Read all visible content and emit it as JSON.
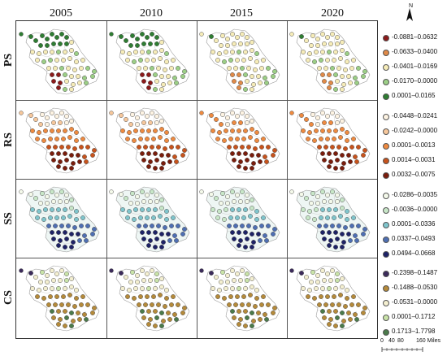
{
  "columns": [
    "2005",
    "2010",
    "2015",
    "2020"
  ],
  "rows": [
    {
      "label": "PS",
      "legend": [
        {
          "range": "-0.0881–0.0632",
          "color": "#8b1a1a"
        },
        {
          "range": "-0.0633–0.0400",
          "color": "#e08a48"
        },
        {
          "range": "-0.0401–0.0169",
          "color": "#f6ecb8"
        },
        {
          "range": "-0.0170–0.0000",
          "color": "#9ccf86"
        },
        {
          "range": "0.0001–0.0165",
          "color": "#2e7d32"
        }
      ]
    },
    {
      "label": "RS",
      "legend": [
        {
          "range": "-0.0448–0.0241",
          "color": "#fdf3e2"
        },
        {
          "range": "-0.0242–0.0000",
          "color": "#f6c79b"
        },
        {
          "range": "0.0001–0.0013",
          "color": "#ee8a40"
        },
        {
          "range": "0.0014–0.0031",
          "color": "#c7531c"
        },
        {
          "range": "0.0032–0.0075",
          "color": "#7a1d0c"
        }
      ]
    },
    {
      "label": "SS",
      "legend": [
        {
          "range": "-0.0286–0.0035",
          "color": "#f4f9ea"
        },
        {
          "range": "-0.0036–0.0000",
          "color": "#c8e7c8"
        },
        {
          "range": "0.0001–0.0336",
          "color": "#7fc5cc"
        },
        {
          "range": "0.0337–0.0493",
          "color": "#4e6fb3"
        },
        {
          "range": "0.0494–0.0668",
          "color": "#1d2266"
        }
      ]
    },
    {
      "label": "CS",
      "legend": [
        {
          "range": "-0.2398–0.1487",
          "color": "#3b2a5a"
        },
        {
          "range": "-0.1488–0.0530",
          "color": "#b58a3a"
        },
        {
          "range": "-0.0531–0.0000",
          "color": "#f4efd0"
        },
        {
          "range": "0.0001–0.1712",
          "color": "#c9e3a8"
        },
        {
          "range": "0.1713–1.7798",
          "color": "#4a7a4a"
        }
      ]
    }
  ],
  "north_label": "N",
  "scale": {
    "labels": [
      "0",
      "40",
      "80",
      "160 Miles"
    ]
  }
}
